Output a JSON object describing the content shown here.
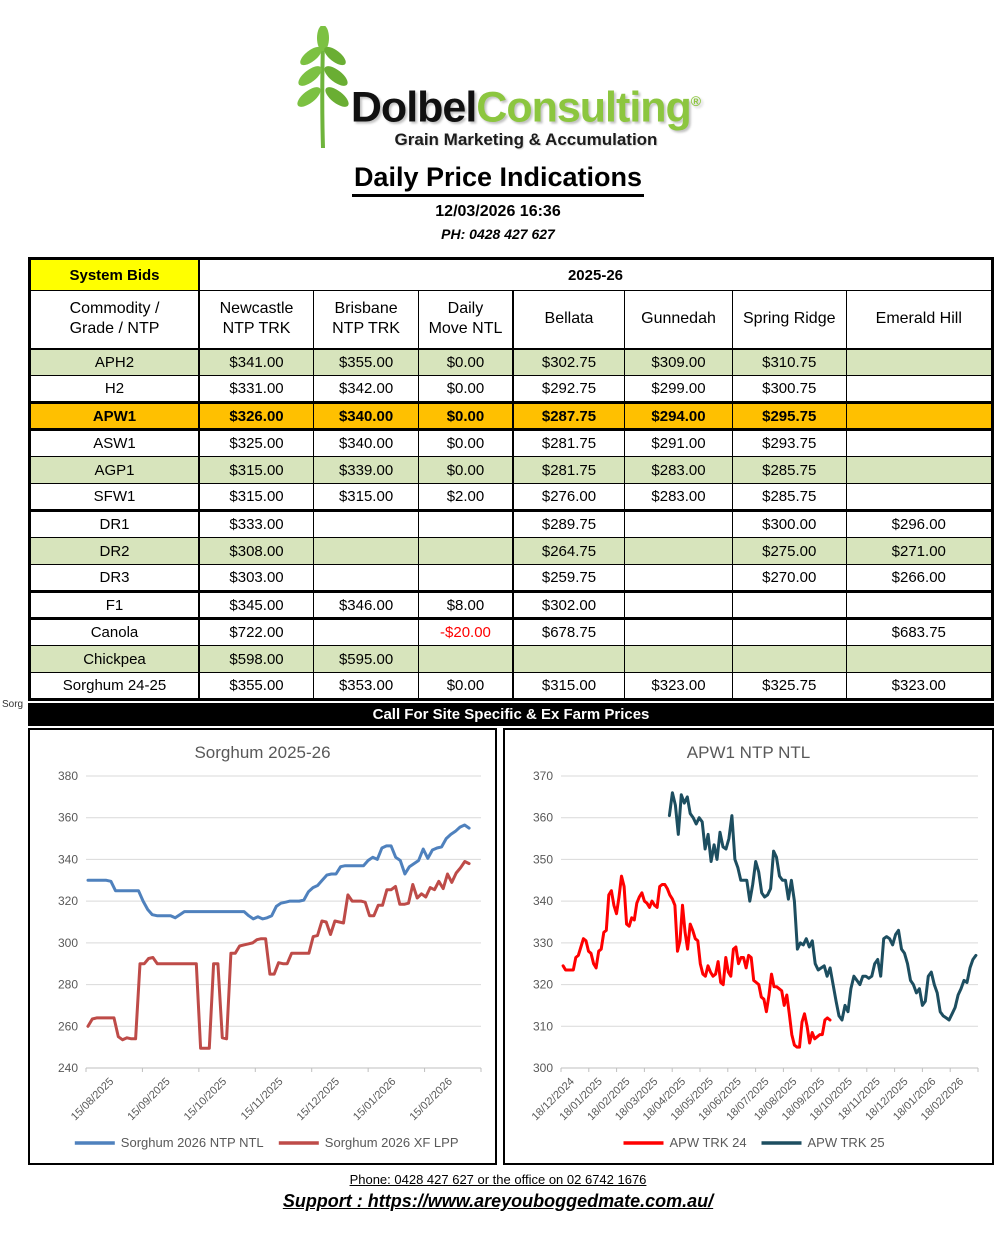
{
  "header": {
    "logo_word1": "Dolbel",
    "logo_word2": "Consulting",
    "registered": "®",
    "tagline": "Grain Marketing & Accumulation",
    "title": "Daily Price Indications",
    "datetime": "12/03/2026 16:36",
    "phone_line": "PH: 0428 427 627"
  },
  "table": {
    "corner_label": "System Bids",
    "season_label": "2025-26",
    "col_headers": [
      {
        "line1": "Commodity /",
        "line2": "Grade / NTP"
      },
      {
        "line1": "Newcastle",
        "line2": "NTP TRK"
      },
      {
        "line1": "Brisbane",
        "line2": "NTP TRK"
      },
      {
        "line1": "Daily",
        "line2": "Move NTL"
      },
      {
        "line1": "Bellata"
      },
      {
        "line1": "Gunnedah"
      },
      {
        "line1": "Spring Ridge"
      },
      {
        "line1": "Emerald Hill"
      }
    ],
    "rows": [
      {
        "commodity": "APH2",
        "values": [
          "$341.00",
          "$355.00",
          "$0.00",
          "$302.75",
          "$309.00",
          "$310.75",
          ""
        ],
        "shade": "green"
      },
      {
        "commodity": "H2",
        "values": [
          "$331.00",
          "$342.00",
          "$0.00",
          "$292.75",
          "$299.00",
          "$300.75",
          ""
        ],
        "shade": "white"
      },
      {
        "commodity": "APW1",
        "values": [
          "$326.00",
          "$340.00",
          "$0.00",
          "$287.75",
          "$294.00",
          "$295.75",
          ""
        ],
        "shade": "orange",
        "bold": true,
        "thick_top": true,
        "thick_bottom": true
      },
      {
        "commodity": "ASW1",
        "values": [
          "$325.00",
          "$340.00",
          "$0.00",
          "$281.75",
          "$291.00",
          "$293.75",
          ""
        ],
        "shade": "white"
      },
      {
        "commodity": "AGP1",
        "values": [
          "$315.00",
          "$339.00",
          "$0.00",
          "$281.75",
          "$283.00",
          "$285.75",
          ""
        ],
        "shade": "green"
      },
      {
        "commodity": "SFW1",
        "values": [
          "$315.00",
          "$315.00",
          "$2.00",
          "$276.00",
          "$283.00",
          "$285.75",
          ""
        ],
        "shade": "white",
        "thick_bottom": true
      },
      {
        "commodity": "DR1",
        "values": [
          "$333.00",
          "",
          "",
          "$289.75",
          "",
          "$300.00",
          "$296.00"
        ],
        "shade": "white"
      },
      {
        "commodity": "DR2",
        "values": [
          "$308.00",
          "",
          "",
          "$264.75",
          "",
          "$275.00",
          "$271.00"
        ],
        "shade": "green"
      },
      {
        "commodity": "DR3",
        "values": [
          "$303.00",
          "",
          "",
          "$259.75",
          "",
          "$270.00",
          "$266.00"
        ],
        "shade": "white",
        "thick_bottom": true
      },
      {
        "commodity": "F1",
        "values": [
          "$345.00",
          "$346.00",
          "$8.00",
          "$302.00",
          "",
          "",
          ""
        ],
        "shade": "white",
        "thick_bottom": true
      },
      {
        "commodity": "Canola",
        "values": [
          "$722.00",
          "",
          "-$20.00",
          "$678.75",
          "",
          "",
          "$683.75"
        ],
        "shade": "white",
        "red_cols": [
          2
        ]
      },
      {
        "commodity": "Chickpea",
        "values": [
          "$598.00",
          "$595.00",
          "",
          "",
          "",
          "",
          ""
        ],
        "shade": "green"
      },
      {
        "commodity": "Sorghum 24-25",
        "values": [
          "$355.00",
          "$353.00",
          "$0.00",
          "$315.00",
          "$323.00",
          "$325.75",
          "$323.00"
        ],
        "shade": "white"
      }
    ]
  },
  "stray_label": "Sorg",
  "banner": "Call For Site Specific & Ex Farm Prices",
  "chart_data": [
    {
      "type": "line",
      "title": "Sorghum 2025-26",
      "ylim": [
        240,
        380
      ],
      "y_ticks": [
        240,
        260,
        280,
        300,
        320,
        340,
        360,
        380
      ],
      "x_labels": [
        "15/08/2025",
        "15/09/2025",
        "15/10/2025",
        "15/11/2025",
        "15/12/2025",
        "15/01/2026",
        "15/02/2026"
      ],
      "grid": true,
      "legend_position": "bottom",
      "series": [
        {
          "name": "Sorghum 2026 NTP NTL",
          "color": "#4F81BD",
          "span": [
            0.005,
            0.97
          ],
          "values": [
            330,
            330,
            330,
            330,
            330,
            329.5,
            325,
            325,
            325,
            325,
            325,
            325,
            320,
            316,
            313.5,
            313,
            313,
            313,
            313,
            312,
            313.5,
            315,
            315,
            315,
            315,
            315,
            315,
            315,
            315,
            315,
            315,
            315,
            315,
            315,
            315,
            313,
            311.5,
            312.5,
            311.5,
            312,
            313,
            317.5,
            319,
            319.5,
            320,
            320,
            320,
            320.5,
            324.5,
            326.5,
            327.5,
            330,
            332.5,
            333,
            333,
            336.5,
            337,
            337,
            337,
            337,
            337,
            339.5,
            341,
            340,
            345.5,
            346.5,
            346.5,
            341,
            339.5,
            333,
            336.5,
            338,
            339.5,
            345,
            340.5,
            344.5,
            345.5,
            346,
            350,
            352,
            353.5,
            355.5,
            356.5,
            355
          ]
        },
        {
          "name": "Sorghum 2026 XF LPP",
          "color": "#BE4B48",
          "span": [
            0.005,
            0.97
          ],
          "values": [
            260,
            263.5,
            264,
            264,
            264,
            264,
            264,
            255,
            253.5,
            254.5,
            254,
            254,
            290,
            290,
            292.5,
            293,
            290,
            290,
            290,
            290,
            290,
            290,
            290,
            290,
            290,
            290,
            249.5,
            249.5,
            249.5,
            290,
            290,
            254.5,
            254,
            295,
            295,
            298.5,
            299,
            299.5,
            300,
            301.5,
            302,
            302,
            285,
            285,
            290.5,
            290,
            290,
            295,
            295,
            295,
            295,
            295,
            303,
            303.5,
            310.5,
            310,
            304,
            310.5,
            310,
            309.5,
            323,
            320,
            320,
            320,
            319.5,
            313,
            313,
            318,
            318,
            325.5,
            325.5,
            327,
            318.5,
            318.5,
            319,
            328,
            321.5,
            323.5,
            322,
            326.5,
            325.5,
            329.5,
            326,
            333,
            329,
            333.5,
            336,
            339,
            338
          ]
        }
      ]
    },
    {
      "type": "line",
      "title": "APW1 NTP NTL",
      "ylim": [
        300,
        370
      ],
      "y_ticks": [
        300,
        310,
        320,
        330,
        340,
        350,
        360,
        370
      ],
      "x_labels": [
        "18/12/2024",
        "18/01/2025",
        "18/02/2025",
        "18/03/2025",
        "18/04/2025",
        "18/05/2025",
        "18/06/2025",
        "18/07/2025",
        "18/08/2025",
        "18/09/2025",
        "18/10/2025",
        "18/11/2025",
        "18/12/2025",
        "18/01/2026",
        "18/02/2026"
      ],
      "grid": true,
      "legend_position": "bottom",
      "series": [
        {
          "name": "APW TRK 24",
          "color": "#FF0000",
          "span": [
            0.005,
            0.645
          ],
          "values": [
            324.5,
            323.5,
            323.5,
            323.5,
            323.5,
            326.5,
            327,
            329,
            331,
            330.5,
            328,
            327.5,
            325,
            324,
            328,
            328.5,
            332.5,
            333,
            341.5,
            342.5,
            339,
            337,
            341,
            346,
            343.5,
            334.5,
            334,
            336,
            335.5,
            339.5,
            341,
            342,
            340,
            339.5,
            338.5,
            340,
            339,
            338.5,
            343.5,
            344,
            344,
            343,
            341.5,
            340.5,
            339,
            328,
            330.5,
            339,
            332.5,
            328.5,
            334.5,
            333,
            331,
            330.5,
            325,
            322.5,
            322,
            324.5,
            323,
            322,
            322.5,
            325.5,
            320.5,
            320,
            326.5,
            323,
            322,
            328.5,
            329,
            325,
            326.5,
            326.5,
            324,
            327,
            326.5,
            321,
            320.5,
            320,
            317,
            316.5,
            313.5,
            317.5,
            322.5,
            319.5,
            319.5,
            319,
            318.5,
            315,
            317.5,
            313,
            308,
            305.5,
            305,
            305,
            311,
            313,
            310,
            306,
            308.5,
            307,
            307.5,
            308,
            308,
            311.5,
            312,
            311.5
          ]
        },
        {
          "name": "APW TRK 25",
          "color": "#1D4E60",
          "span": [
            0.26,
            0.995
          ],
          "values": [
            360.5,
            366,
            363,
            356,
            365.5,
            363.5,
            365,
            361,
            360,
            358.5,
            360,
            359,
            352.5,
            356,
            349.5,
            353.5,
            350,
            356.5,
            353,
            352.5,
            355,
            360.5,
            350,
            348,
            345,
            345,
            345,
            340,
            344,
            349.5,
            347,
            342,
            341,
            341.5,
            343,
            352,
            350.5,
            346,
            345,
            345,
            340.5,
            345,
            340,
            328.5,
            330,
            329.5,
            331,
            329,
            330.5,
            325,
            323.5,
            324,
            324.5,
            322,
            324,
            320,
            316,
            312.5,
            311.5,
            315,
            313.5,
            319,
            322,
            321,
            320,
            322,
            322,
            321.5,
            322,
            325,
            326,
            322,
            331,
            331.5,
            331,
            329.5,
            332,
            333,
            328.5,
            327.5,
            325,
            321,
            320,
            318,
            319,
            315,
            316,
            322,
            323,
            320,
            318,
            313.5,
            312.5,
            312,
            311.5,
            313,
            314.5,
            317.5,
            319,
            321,
            320.5,
            324,
            326,
            327
          ]
        }
      ]
    }
  ],
  "footer": {
    "phone": "Phone: 0428 427 627 or the office on 02 6742 1676",
    "support": "Support : https://www.areyouboggedmate.com.au/"
  },
  "colors": {
    "row_green": "#D7E4BC",
    "row_orange": "#FFC000",
    "corner_yellow": "#FFFF00",
    "negative_red": "#FF0000",
    "chart_text": "#595959",
    "gridline": "#D9D9D9",
    "axis_line": "#BFBFBF",
    "logo_green": "#8CC63F"
  }
}
